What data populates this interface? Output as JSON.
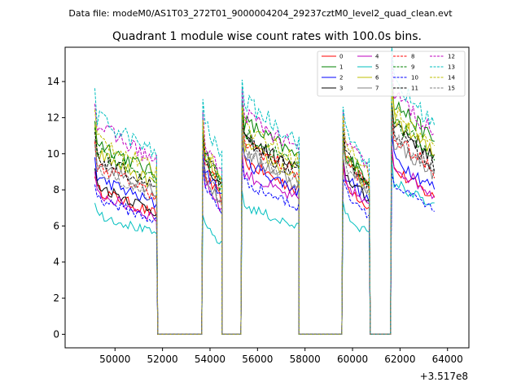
{
  "file_label": "Data file: modeM0/AS1T03_272T01_9000004204_29237cztM0_level2_quad_clean.evt",
  "chart_data": {
    "type": "line",
    "title": "Quadrant 1 module wise count rates with 100.0s bins.",
    "xlabel": "",
    "ylabel": "",
    "x_offset_label": "+3.517e8",
    "xlim": [
      47900,
      64900
    ],
    "ylim": [
      -0.75,
      15.9
    ],
    "x_ticks": [
      50000,
      52000,
      54000,
      56000,
      58000,
      60000,
      62000,
      64000
    ],
    "y_ticks": [
      0,
      2,
      4,
      6,
      8,
      10,
      12,
      14
    ],
    "legend_position": "top-right",
    "segments": [
      {
        "start": 49150,
        "end": 51750
      },
      {
        "start": 53700,
        "end": 54450
      },
      {
        "start": 55350,
        "end": 57700
      },
      {
        "start": 59600,
        "end": 60700
      },
      {
        "start": 61650,
        "end": 63450
      }
    ],
    "series": [
      {
        "name": "0",
        "color": "#ff0000",
        "dash": "solid",
        "levels": [
          7.2,
          8.0,
          8.6,
          7.6,
          8.2
        ]
      },
      {
        "name": "1",
        "color": "#008000",
        "dash": "solid",
        "levels": [
          9.6,
          9.2,
          10.6,
          9.2,
          11.6
        ]
      },
      {
        "name": "2",
        "color": "#0000ff",
        "dash": "solid",
        "levels": [
          7.8,
          8.3,
          8.6,
          8.0,
          8.8
        ]
      },
      {
        "name": "3",
        "color": "#000000",
        "dash": "solid",
        "levels": [
          7.4,
          8.6,
          9.8,
          8.0,
          10.6
        ]
      },
      {
        "name": "4",
        "color": "#bf00bf",
        "dash": "solid",
        "levels": [
          7.0,
          7.6,
          8.0,
          7.6,
          8.4
        ]
      },
      {
        "name": "5",
        "color": "#00bfbf",
        "dash": "solid",
        "levels": [
          6.0,
          5.4,
          6.4,
          6.0,
          7.6
        ]
      },
      {
        "name": "6",
        "color": "#bfbf00",
        "dash": "solid",
        "levels": [
          9.0,
          9.0,
          9.4,
          8.8,
          10.8
        ]
      },
      {
        "name": "7",
        "color": "#808080",
        "dash": "solid",
        "levels": [
          8.6,
          7.8,
          9.0,
          8.6,
          9.6
        ]
      },
      {
        "name": "8",
        "color": "#ff0000",
        "dash": "dashed",
        "levels": [
          8.4,
          8.6,
          9.6,
          8.8,
          9.8
        ]
      },
      {
        "name": "9",
        "color": "#008000",
        "dash": "dashed",
        "levels": [
          9.2,
          8.8,
          10.0,
          9.0,
          10.6
        ]
      },
      {
        "name": "10",
        "color": "#0000ff",
        "dash": "dashed",
        "levels": [
          6.8,
          7.4,
          7.6,
          7.2,
          7.4
        ]
      },
      {
        "name": "11",
        "color": "#000000",
        "dash": "dashed",
        "levels": [
          8.8,
          9.0,
          9.6,
          9.0,
          10.2
        ]
      },
      {
        "name": "12",
        "color": "#bf00bf",
        "dash": "dashed",
        "levels": [
          10.4,
          9.6,
          11.0,
          9.8,
          12.0
        ]
      },
      {
        "name": "13",
        "color": "#00bfbf",
        "dash": "dashed",
        "levels": [
          10.8,
          10.6,
          11.6,
          10.2,
          12.6
        ]
      },
      {
        "name": "14",
        "color": "#bfbf00",
        "dash": "dashed",
        "levels": [
          9.8,
          9.4,
          10.4,
          9.6,
          11.2
        ]
      },
      {
        "name": "15",
        "color": "#808080",
        "dash": "dashed",
        "levels": [
          8.2,
          8.0,
          9.2,
          8.4,
          9.8
        ]
      }
    ]
  }
}
